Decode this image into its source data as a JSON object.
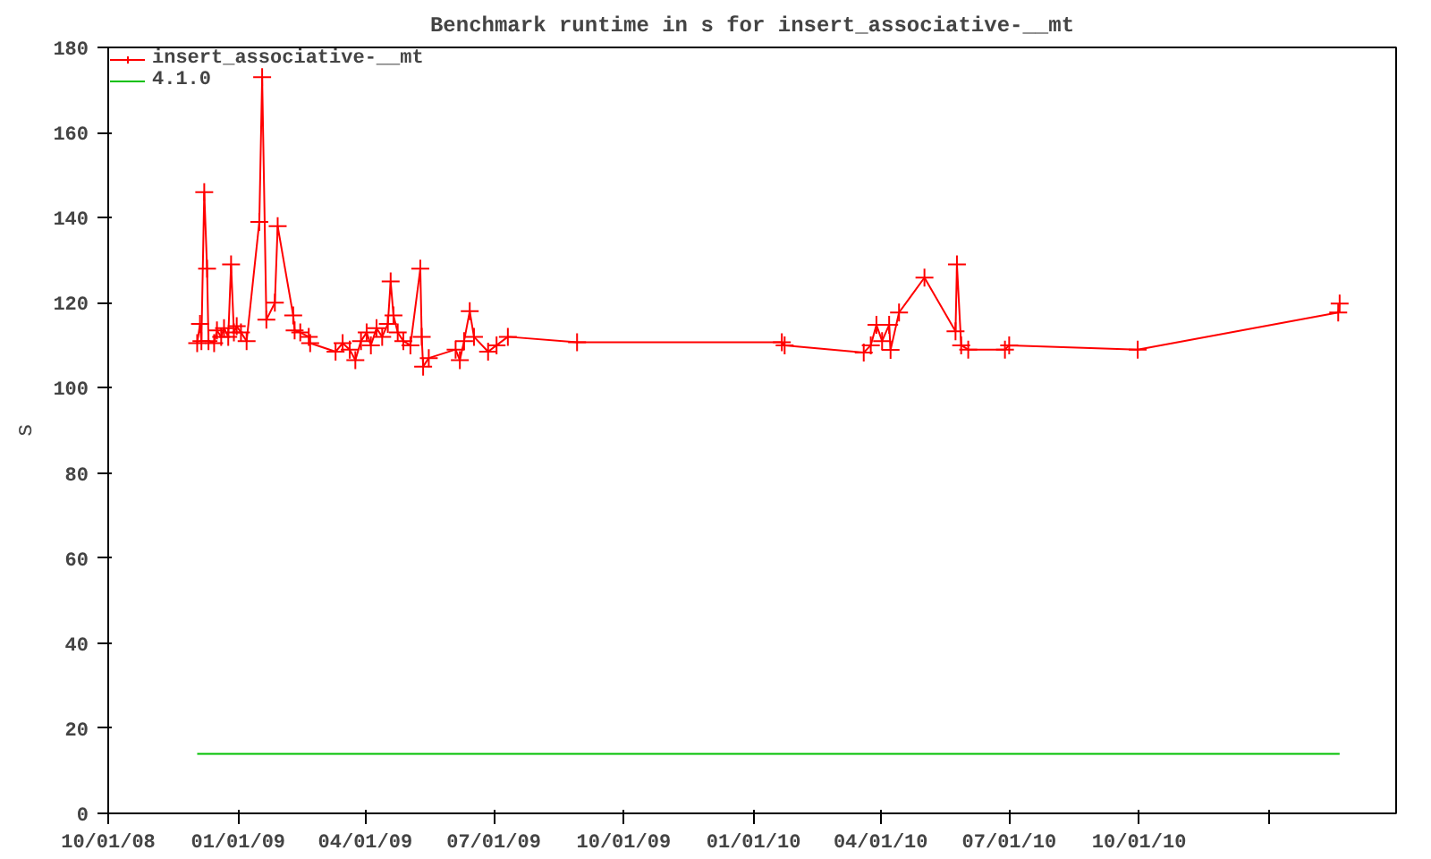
{
  "chart_data": {
    "type": "line",
    "title": "Benchmark runtime in s for insert_associative-__mt",
    "ylabel": "s",
    "xlim": [
      "2008-10-01",
      "2011-04-01"
    ],
    "xticks": [
      {
        "value": "2008-10-01",
        "label": "10/01/08"
      },
      {
        "value": "2009-01-01",
        "label": "01/01/09"
      },
      {
        "value": "2009-04-01",
        "label": "04/01/09"
      },
      {
        "value": "2009-07-01",
        "label": "07/01/09"
      },
      {
        "value": "2009-10-01",
        "label": "10/01/09"
      },
      {
        "value": "2010-01-01",
        "label": "01/01/10"
      },
      {
        "value": "2010-04-01",
        "label": "04/01/10"
      },
      {
        "value": "2010-07-01",
        "label": "07/01/10"
      },
      {
        "value": "2010-10-01",
        "label": "10/01/10"
      },
      {
        "value": "2011-01-01",
        "label": null
      }
    ],
    "ylim": [
      0,
      180
    ],
    "yticks": [
      0,
      20,
      40,
      60,
      80,
      100,
      120,
      140,
      160,
      180
    ],
    "grid": false,
    "legend": "top left",
    "series": [
      {
        "name": "insert_associative-__mt",
        "color": "#ff0000",
        "marker": "cross",
        "x": [
          "2008-12-03",
          "2008-12-05",
          "2008-12-06",
          "2008-12-08",
          "2008-12-10",
          "2008-12-11",
          "2008-12-15",
          "2008-12-17",
          "2008-12-20",
          "2008-12-22",
          "2008-12-25",
          "2008-12-27",
          "2008-12-29",
          "2008-12-31",
          "2009-01-03",
          "2009-01-07",
          "2009-01-16",
          "2009-01-18",
          "2009-01-21",
          "2009-01-27",
          "2009-01-29",
          "2009-02-09",
          "2009-02-10",
          "2009-02-14",
          "2009-02-20",
          "2009-02-21",
          "2009-03-11",
          "2009-03-16",
          "2009-03-21",
          "2009-03-25",
          "2009-03-29",
          "2009-04-02",
          "2009-04-05",
          "2009-04-09",
          "2009-04-13",
          "2009-04-17",
          "2009-04-19",
          "2009-04-21",
          "2009-04-24",
          "2009-04-28",
          "2009-05-03",
          "2009-05-10",
          "2009-05-11",
          "2009-05-12",
          "2009-05-16",
          "2009-06-04",
          "2009-06-07",
          "2009-06-10",
          "2009-06-14",
          "2009-06-17",
          "2009-06-27",
          "2009-07-03",
          "2009-07-11",
          "2009-08-29",
          "2010-01-21",
          "2010-01-23",
          "2010-03-20",
          "2010-03-25",
          "2010-03-29",
          "2010-04-02",
          "2010-04-07",
          "2010-04-08",
          "2010-04-14",
          "2010-05-02",
          "2010-05-24",
          "2010-05-25",
          "2010-05-28",
          "2010-06-02",
          "2010-06-28",
          "2010-07-01",
          "2010-09-30",
          "2011-02-19",
          "2011-02-20"
        ],
        "values": [
          110.5,
          115,
          111,
          146,
          128,
          111,
          110.5,
          113.5,
          112,
          114,
          112,
          129,
          113,
          114.5,
          113,
          111,
          139,
          173,
          116,
          120,
          138,
          117,
          113.5,
          113,
          112,
          110.5,
          108.5,
          110.5,
          109,
          106.5,
          111,
          113,
          110,
          114,
          112,
          115,
          125,
          117,
          113,
          111,
          110,
          128,
          112,
          105,
          107,
          109,
          106.5,
          111,
          118,
          112,
          108.5,
          110,
          112,
          110.7,
          110.7,
          110,
          108.3,
          110,
          114.8,
          111,
          114.8,
          108.9,
          117.7,
          125.9,
          113.3,
          129,
          110,
          109,
          109,
          110,
          109,
          117.7,
          119.8
        ]
      },
      {
        "name": "4.1.0",
        "color": "#00c000",
        "marker": "none",
        "x": [
          "2008-12-03",
          "2011-02-20"
        ],
        "values": [
          14,
          14
        ]
      }
    ]
  }
}
